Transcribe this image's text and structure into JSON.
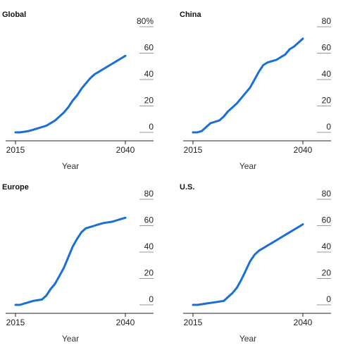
{
  "chart_data": [
    {
      "type": "line",
      "title": "Global",
      "xlabel": "Year",
      "ylabel": "",
      "xlim": [
        2015,
        2040
      ],
      "ylim": [
        0,
        80
      ],
      "x_ticks": [
        "2015",
        "2040"
      ],
      "y_ticks": [
        "80%",
        "60",
        "40",
        "20",
        "0"
      ],
      "series": [
        {
          "color": "#1a6fd6",
          "x": [
            2015,
            2016,
            2017,
            2018,
            2019,
            2020,
            2021,
            2022,
            2023,
            2024,
            2025,
            2026,
            2027,
            2028,
            2029,
            2030,
            2031,
            2032,
            2033,
            2034,
            2035,
            2036,
            2037,
            2038,
            2039,
            2040
          ],
          "y": [
            0,
            0,
            0.5,
            1,
            2,
            3,
            4,
            5,
            7,
            9,
            12,
            15,
            19,
            24,
            28,
            33,
            37,
            41,
            44,
            46,
            48,
            50,
            52,
            54,
            56,
            58
          ]
        }
      ]
    },
    {
      "type": "line",
      "title": "China",
      "xlabel": "Year",
      "ylabel": "",
      "xlim": [
        2015,
        2040
      ],
      "ylim": [
        0,
        80
      ],
      "x_ticks": [
        "2015",
        "2040"
      ],
      "y_ticks": [
        "80",
        "60",
        "40",
        "20",
        "0"
      ],
      "series": [
        {
          "color": "#1a6fd6",
          "x": [
            2015,
            2016,
            2017,
            2018,
            2019,
            2020,
            2021,
            2022,
            2023,
            2024,
            2025,
            2026,
            2027,
            2028,
            2029,
            2030,
            2031,
            2032,
            2033,
            2034,
            2035,
            2036,
            2037,
            2038,
            2039,
            2040
          ],
          "y": [
            0,
            0,
            1,
            4,
            7,
            8,
            9,
            12,
            16,
            19,
            22,
            26,
            30,
            34,
            40,
            46,
            51,
            53,
            54,
            55,
            57,
            59,
            63,
            65,
            68,
            71
          ]
        }
      ]
    },
    {
      "type": "line",
      "title": "Europe",
      "xlabel": "Year",
      "ylabel": "",
      "xlim": [
        2015,
        2040
      ],
      "ylim": [
        0,
        80
      ],
      "x_ticks": [
        "2015",
        "2040"
      ],
      "y_ticks": [
        "80",
        "60",
        "40",
        "20",
        "0"
      ],
      "series": [
        {
          "color": "#1a6fd6",
          "x": [
            2015,
            2016,
            2017,
            2018,
            2019,
            2020,
            2021,
            2022,
            2023,
            2024,
            2025,
            2026,
            2027,
            2028,
            2029,
            2030,
            2031,
            2032,
            2033,
            2034,
            2035,
            2036,
            2037,
            2038,
            2039,
            2040
          ],
          "y": [
            0,
            0,
            1,
            2,
            3,
            3.5,
            4,
            7,
            12,
            16,
            22,
            28,
            36,
            44,
            50,
            55,
            58,
            59,
            60,
            61,
            62,
            62.5,
            63,
            64,
            65,
            66
          ]
        }
      ]
    },
    {
      "type": "line",
      "title": "U.S.",
      "xlabel": "Year",
      "ylabel": "",
      "xlim": [
        2015,
        2040
      ],
      "ylim": [
        0,
        80
      ],
      "x_ticks": [
        "2015",
        "2040"
      ],
      "y_ticks": [
        "80",
        "60",
        "40",
        "20",
        "0"
      ],
      "series": [
        {
          "color": "#1a6fd6",
          "x": [
            2015,
            2016,
            2017,
            2018,
            2019,
            2020,
            2021,
            2022,
            2023,
            2024,
            2025,
            2026,
            2027,
            2028,
            2029,
            2030,
            2031,
            2032,
            2033,
            2034,
            2035,
            2036,
            2037,
            2038,
            2039,
            2040
          ],
          "y": [
            0,
            0,
            0.5,
            1,
            1.5,
            2,
            2.5,
            3,
            6,
            9,
            13,
            19,
            26,
            33,
            38,
            41,
            43,
            45,
            47,
            49,
            51,
            53,
            55,
            57,
            59,
            61
          ]
        }
      ]
    }
  ]
}
